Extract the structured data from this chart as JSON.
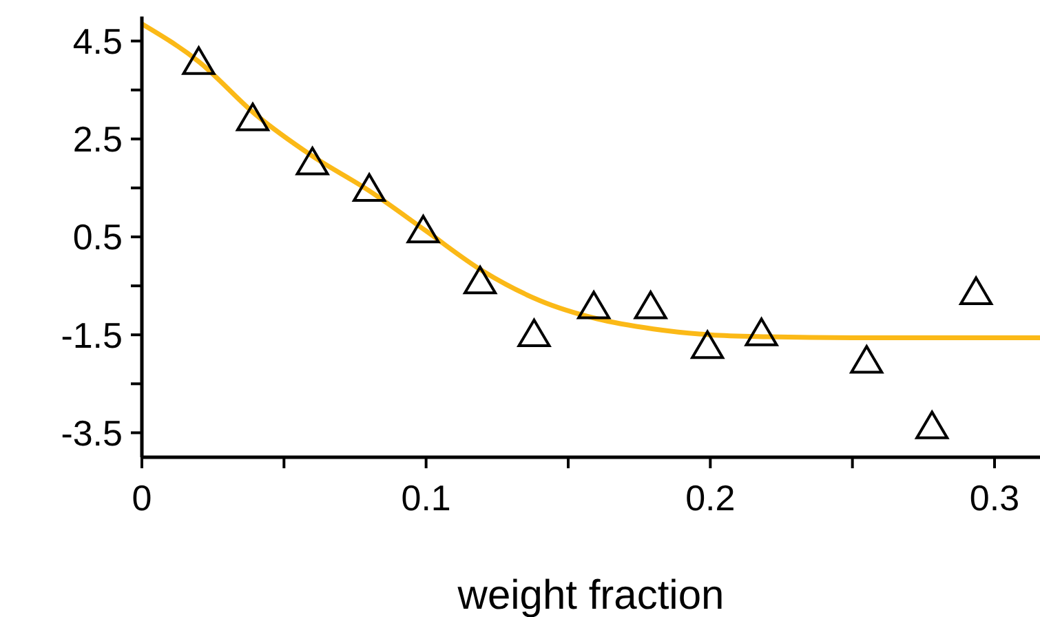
{
  "chart_data": {
    "type": "scatter",
    "xlabel": "weight fraction",
    "xlim": [
      0,
      0.316
    ],
    "ylim": [
      -4,
      5
    ],
    "xticks": [
      0,
      {
        "value": 0.05,
        "label": null
      },
      0.1,
      {
        "value": 0.15,
        "label": null
      },
      0.2,
      {
        "value": 0.25,
        "label": null
      },
      0.3
    ],
    "yticks": [
      -3.5,
      {
        "value": -2.5,
        "label": null
      },
      -1.5,
      {
        "value": -0.5,
        "label": null
      },
      0.5,
      {
        "value": 1.5,
        "label": null
      },
      2.5,
      {
        "value": 3.5,
        "label": null
      },
      4.5
    ],
    "grid": false,
    "legend": false,
    "series": [
      {
        "color": "#000000",
        "marker": "triangle",
        "x": [
          0.02,
          0.039,
          0.06,
          0.08,
          0.099,
          0.119,
          0.138,
          0.159,
          0.179,
          0.199,
          0.218,
          0.255,
          0.278,
          0.2935
        ],
        "values": [
          4.1,
          2.95,
          2.05,
          1.51,
          0.66,
          -0.38,
          -1.46,
          -0.89,
          -0.89,
          -1.7,
          -1.44,
          -2.0,
          -3.34,
          -0.6
        ]
      },
      {
        "type": "line",
        "color": "#fbb917",
        "marker": "none",
        "x": [
          0,
          0.02,
          0.04,
          0.06,
          0.08,
          0.1,
          0.12,
          0.14,
          0.16,
          0.18,
          0.2,
          0.22,
          0.25,
          0.316
        ],
        "values": [
          4.85,
          4.08,
          3.0,
          2.15,
          1.44,
          0.62,
          -0.2,
          -0.8,
          -1.17,
          -1.38,
          -1.5,
          -1.54,
          -1.56,
          -1.56
        ]
      }
    ]
  }
}
